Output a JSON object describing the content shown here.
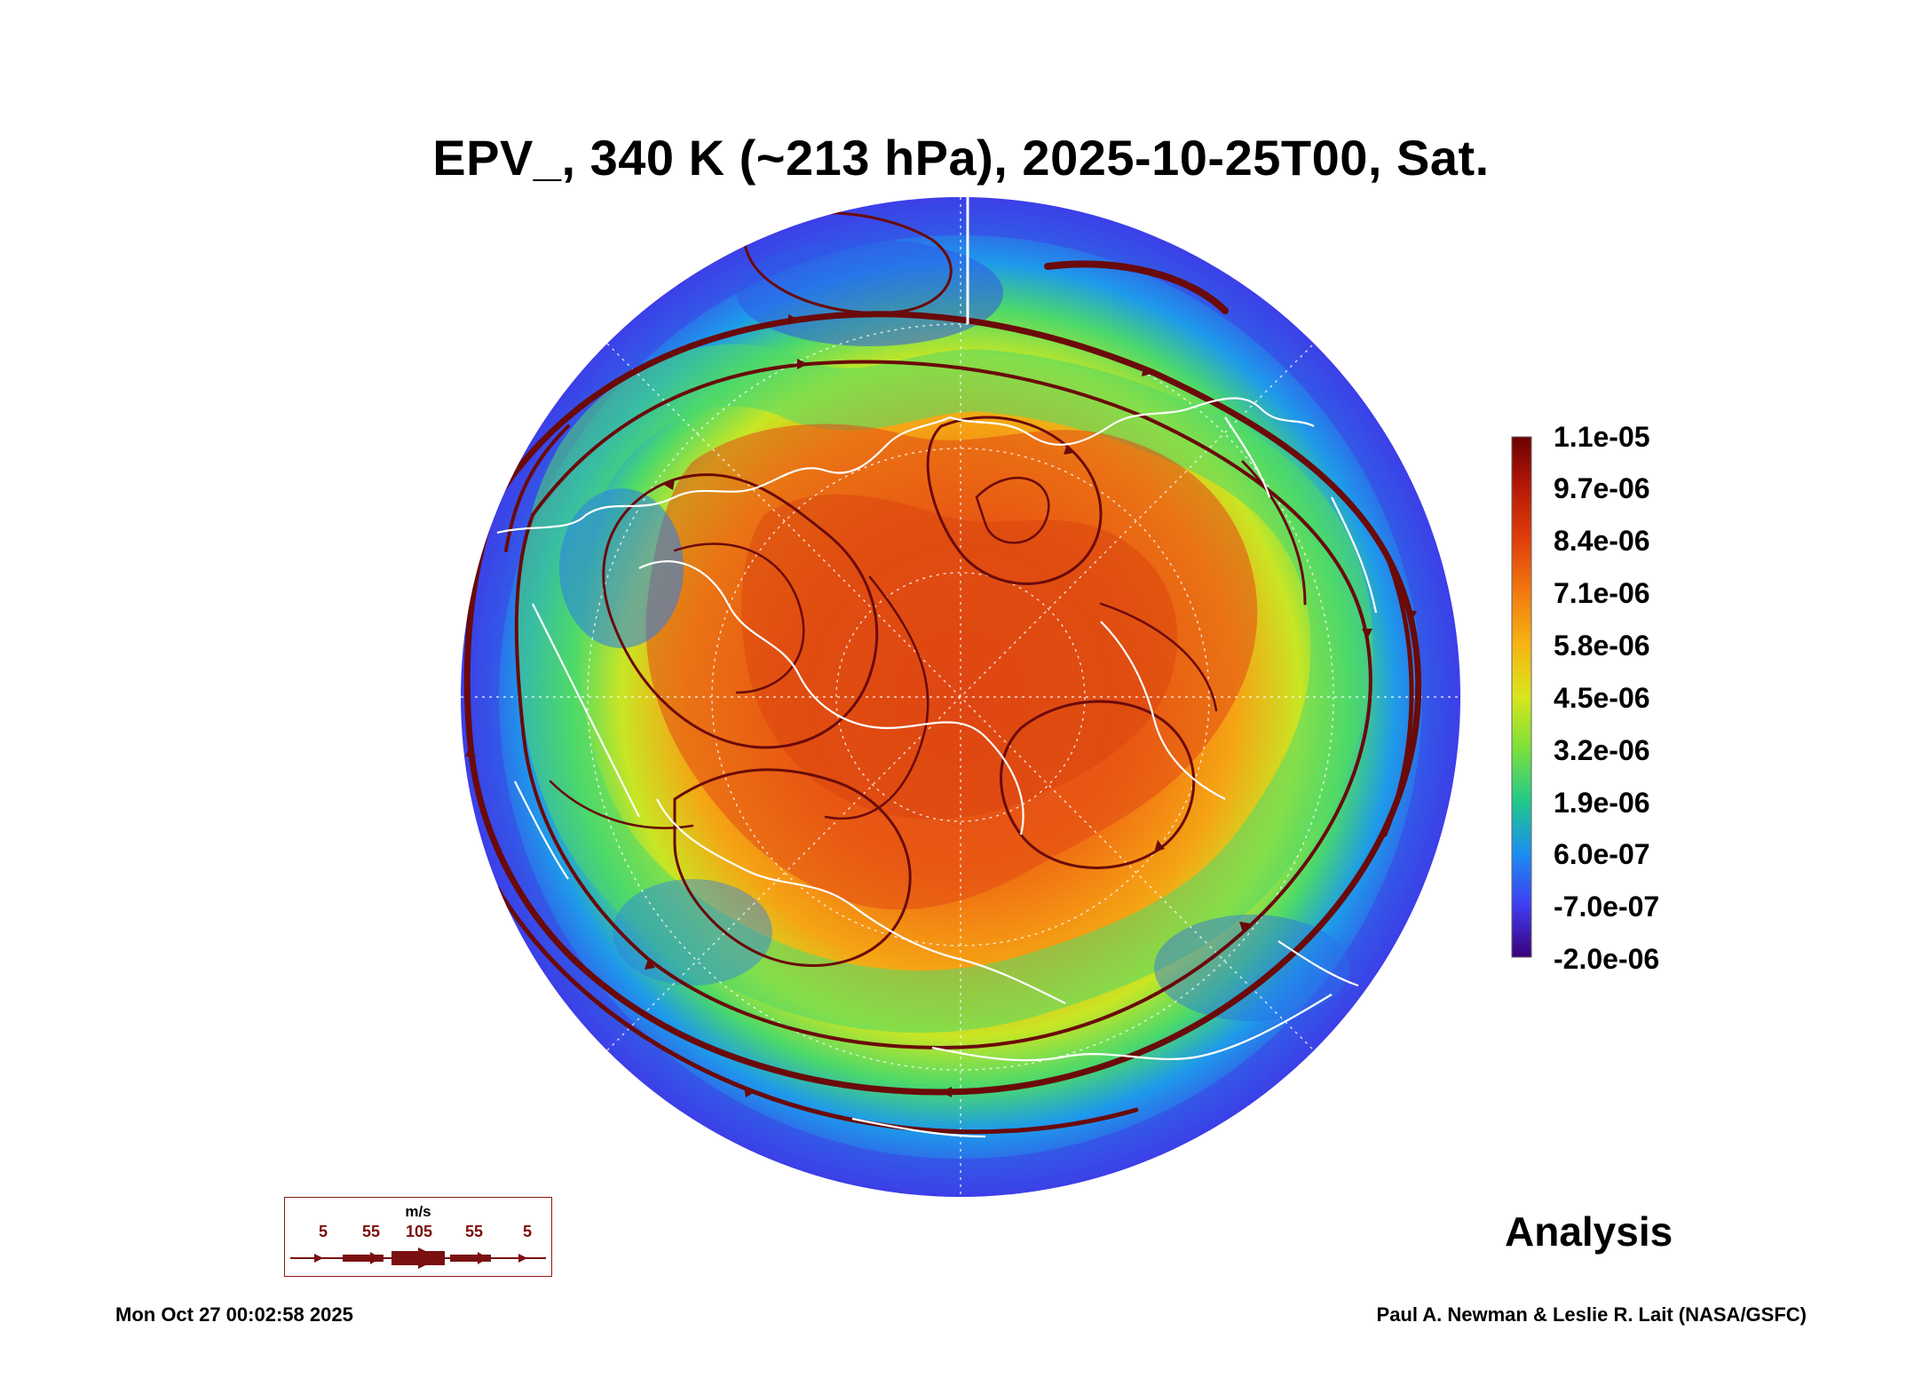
{
  "title": "EPV_, 340 K (~213 hPa), 2025-10-25T00, Sat.",
  "colorbar": {
    "labels": [
      "1.1e-05",
      "9.7e-06",
      "8.4e-06",
      "7.1e-06",
      "5.8e-06",
      "4.5e-06",
      "3.2e-06",
      "1.9e-06",
      "6.0e-07",
      "-7.0e-07",
      "-2.0e-06"
    ],
    "colors": [
      "#6b0000",
      "#b81a08",
      "#e0400a",
      "#f27a10",
      "#f7b414",
      "#d8e61c",
      "#7be03c",
      "#22c98a",
      "#1c8ef0",
      "#3f3df0",
      "#3a007a"
    ]
  },
  "wind_legend": {
    "unit": "m/s",
    "values": [
      "5",
      "55",
      "105",
      "55",
      "5"
    ],
    "color": "#7a1010"
  },
  "product_label": "Analysis",
  "timestamp": "Mon Oct 27 00:02:58 2025",
  "credit": "Paul A. Newman & Leslie R. Lait (NASA/GSFC)"
}
